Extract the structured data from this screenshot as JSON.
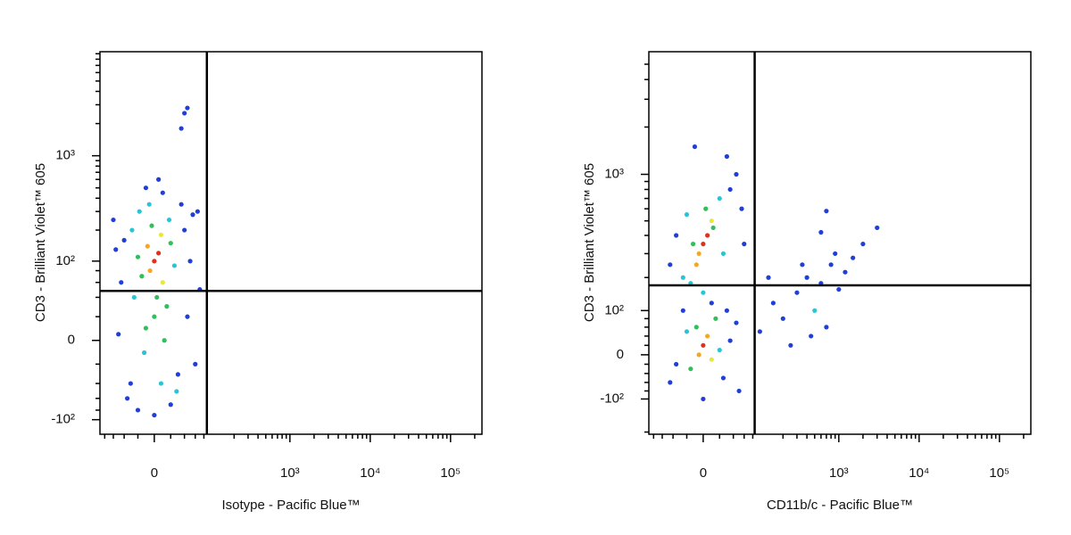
{
  "chart_data": [
    {
      "type": "scatter",
      "x_label": "Isotype - Pacific Blue™",
      "y_label": "CD3 - Brilliant Violet™ 605",
      "xlim": [
        -93,
        246000
      ],
      "ylim": [
        -139,
        9400
      ],
      "xticks": [
        0,
        {
          "value": 1000,
          "label": "10³"
        },
        {
          "value": 10000,
          "label": "10⁴"
        },
        {
          "value": 100000,
          "label": "10⁵"
        }
      ],
      "yticks": [
        {
          "value": -100,
          "label": "-10²"
        },
        0,
        {
          "value": 100,
          "label": "10²"
        },
        {
          "value": 1000,
          "label": "10³"
        }
      ],
      "xminorticks": [
        -80,
        -60,
        -40,
        -20,
        20,
        40,
        60,
        80,
        200,
        300,
        400,
        500,
        600,
        700,
        800,
        900,
        2000,
        3000,
        4000,
        5000,
        6000,
        7000,
        8000,
        9000,
        20000,
        30000,
        40000,
        50000,
        60000,
        70000,
        80000,
        90000,
        200000
      ],
      "yminorticks": [
        -80,
        -60,
        -40,
        -20,
        20,
        40,
        60,
        80,
        200,
        300,
        400,
        500,
        600,
        700,
        800,
        900,
        2000,
        3000,
        4000,
        5000,
        6000,
        7000,
        8000,
        9000
      ],
      "gate": {
        "x": 88,
        "y": 48
      },
      "x": [
        0,
        5,
        -5,
        10,
        -8,
        3,
        0,
        -10,
        8,
        -3,
        15,
        -15,
        20,
        -20,
        12,
        -12,
        25,
        -25,
        18,
        -18,
        30,
        -30,
        40,
        -40,
        45,
        -45,
        35,
        -35,
        50,
        -50,
        55,
        -55,
        60,
        20,
        -20,
        0,
        10,
        -10,
        5,
        65,
        -60,
        70,
        28,
        -28,
        8,
        -6,
        40,
        45,
        35
      ],
      "y": [
        100,
        120,
        80,
        60,
        140,
        40,
        20,
        10,
        180,
        220,
        30,
        70,
        150,
        110,
        0,
        -10,
        90,
        40,
        250,
        300,
        -30,
        -40,
        200,
        160,
        20,
        60,
        350,
        -60,
        100,
        5,
        280,
        130,
        -20,
        -70,
        -80,
        -90,
        450,
        500,
        600,
        300,
        250,
        50,
        -50,
        200,
        -40,
        350,
        2500,
        2800,
        1800
      ],
      "colors": [
        "#e0301e",
        "#e0301e",
        "#f5a623",
        "#e8e83a",
        "#f5a623",
        "#2fc05a",
        "#2fc05a",
        "#2fc05a",
        "#e8e83a",
        "#2fc05a",
        "#2fc05a",
        "#2fc05a",
        "#2fc05a",
        "#2fc05a",
        "#2fc05a",
        "#27c6d6",
        "#27c6d6",
        "#27c6d6",
        "#27c6d6",
        "#27c6d6",
        "#1f3fd6",
        "#1f3fd6",
        "#1f3fd6",
        "#1f3fd6",
        "#1f3fd6",
        "#1f3fd6",
        "#1f3fd6",
        "#1f3fd6",
        "#1f3fd6",
        "#1f3fd6",
        "#1f3fd6",
        "#1f3fd6",
        "#1f3fd6",
        "#1f3fd6",
        "#1f3fd6",
        "#1f3fd6",
        "#1f3fd6",
        "#1f3fd6",
        "#1f3fd6",
        "#1f3fd6",
        "#1f3fd6",
        "#1f3fd6",
        "#27c6d6",
        "#27c6d6",
        "#27c6d6",
        "#27c6d6",
        "#1f3fd6",
        "#1f3fd6",
        "#1f3fd6"
      ]
    },
    {
      "type": "scatter",
      "x_label": "CD11b/c - Pacific Blue™",
      "y_label": "CD3 - Brilliant Violet™ 605",
      "xlim": [
        -93,
        246000
      ],
      "ylim": [
        -208,
        6000
      ],
      "xticks": [
        0,
        {
          "value": 1000,
          "label": "10³"
        },
        {
          "value": 10000,
          "label": "10⁴"
        },
        {
          "value": 100000,
          "label": "10⁵"
        }
      ],
      "yticks": [
        {
          "value": -100,
          "label": "-10²"
        },
        0,
        {
          "value": 100,
          "label": "10²"
        },
        {
          "value": 1000,
          "label": "10³"
        }
      ],
      "xminorticks": [
        -80,
        -60,
        -40,
        -20,
        20,
        40,
        60,
        80,
        200,
        300,
        400,
        500,
        600,
        700,
        800,
        900,
        2000,
        3000,
        4000,
        5000,
        6000,
        7000,
        8000,
        9000,
        20000,
        30000,
        40000,
        50000,
        60000,
        70000,
        80000,
        90000,
        200000
      ],
      "yminorticks": [
        -200,
        -80,
        -60,
        -40,
        -20,
        20,
        40,
        60,
        80,
        200,
        300,
        400,
        500,
        600,
        700,
        800,
        900,
        2000,
        3000,
        4000,
        5000
      ],
      "gate": {
        "x": 85,
        "y": 173
      },
      "x": [
        0,
        5,
        -5,
        10,
        -8,
        3,
        12,
        -12,
        20,
        -20,
        25,
        -25,
        35,
        -35,
        45,
        -45,
        30,
        -10,
        55,
        60,
        0,
        10,
        -15,
        30,
        0,
        5,
        -5,
        10,
        -8,
        15,
        -15,
        20,
        -20,
        25,
        -25,
        35,
        -35,
        45,
        -45,
        50,
        0,
        100,
        150,
        200,
        300,
        400,
        500,
        600,
        800,
        1000,
        1200,
        700,
        250,
        900,
        1500,
        2000,
        350,
        450,
        130,
        600,
        3000,
        700
      ],
      "y": [
        350,
        400,
        300,
        500,
        250,
        600,
        450,
        350,
        700,
        550,
        300,
        200,
        800,
        400,
        1000,
        250,
        1300,
        1500,
        600,
        350,
        150,
        120,
        180,
        100,
        20,
        40,
        0,
        -10,
        60,
        80,
        -30,
        10,
        50,
        -50,
        100,
        30,
        -20,
        70,
        -60,
        -80,
        -100,
        50,
        120,
        80,
        150,
        200,
        100,
        180,
        250,
        160,
        220,
        60,
        20,
        300,
        280,
        350,
        250,
        40,
        200,
        420,
        450,
        580
      ],
      "colors": [
        "#e0301e",
        "#e0301e",
        "#f5a623",
        "#e8e83a",
        "#f5a623",
        "#2fc05a",
        "#2fc05a",
        "#2fc05a",
        "#27c6d6",
        "#27c6d6",
        "#27c6d6",
        "#27c6d6",
        "#1f3fd6",
        "#1f3fd6",
        "#1f3fd6",
        "#1f3fd6",
        "#1f3fd6",
        "#1f3fd6",
        "#1f3fd6",
        "#1f3fd6",
        "#27c6d6",
        "#1f3fd6",
        "#27c6d6",
        "#1f3fd6",
        "#e0301e",
        "#f5a623",
        "#f5a623",
        "#e8e83a",
        "#2fc05a",
        "#2fc05a",
        "#2fc05a",
        "#27c6d6",
        "#27c6d6",
        "#1f3fd6",
        "#1f3fd6",
        "#1f3fd6",
        "#1f3fd6",
        "#1f3fd6",
        "#1f3fd6",
        "#1f3fd6",
        "#1f3fd6",
        "#1f3fd6",
        "#1f3fd6",
        "#1f3fd6",
        "#1f3fd6",
        "#1f3fd6",
        "#27c6d6",
        "#1f3fd6",
        "#1f3fd6",
        "#1f3fd6",
        "#1f3fd6",
        "#1f3fd6",
        "#1f3fd6",
        "#1f3fd6",
        "#1f3fd6",
        "#1f3fd6",
        "#1f3fd6",
        "#1f3fd6",
        "#1f3fd6",
        "#1f3fd6",
        "#1f3fd6",
        "#1f3fd6"
      ]
    }
  ]
}
